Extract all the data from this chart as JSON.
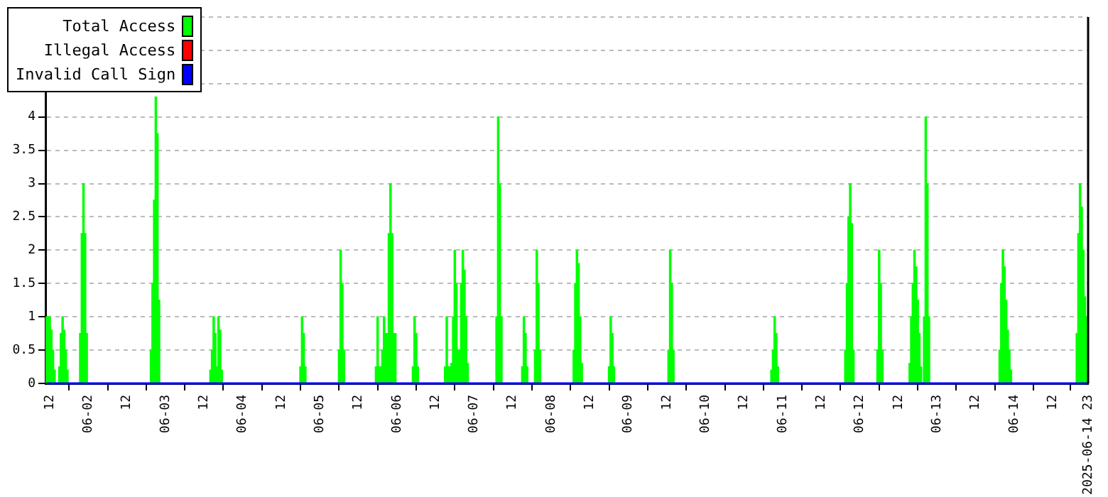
{
  "chart_data": {
    "type": "bar",
    "legend": "top left",
    "grid": "y",
    "marker": "none",
    "xlim": [
      "2025-06-01T10:40",
      "2025-06-14T23:00"
    ],
    "ylim": [
      0,
      5.5
    ],
    "yticks": [
      0,
      0.5,
      1,
      1.5,
      2,
      2.5,
      3,
      3.5,
      4,
      {
        "value": 4.5,
        "label": null
      },
      {
        "value": 5,
        "label": null
      },
      {
        "value": 5.5,
        "label": null
      }
    ],
    "xticks": [
      {
        "value": "2025-06-01T12:00",
        "label": "12"
      },
      {
        "value": "2025-06-02T00:00",
        "label": "06-02"
      },
      {
        "value": "2025-06-02T12:00",
        "label": "12"
      },
      {
        "value": "2025-06-03T00:00",
        "label": "06-03"
      },
      {
        "value": "2025-06-03T12:00",
        "label": "12"
      },
      {
        "value": "2025-06-04T00:00",
        "label": "06-04"
      },
      {
        "value": "2025-06-04T12:00",
        "label": "12"
      },
      {
        "value": "2025-06-05T00:00",
        "label": "06-05"
      },
      {
        "value": "2025-06-05T12:00",
        "label": "12"
      },
      {
        "value": "2025-06-06T00:00",
        "label": "06-06"
      },
      {
        "value": "2025-06-06T12:00",
        "label": "12"
      },
      {
        "value": "2025-06-07T00:00",
        "label": "06-07"
      },
      {
        "value": "2025-06-07T12:00",
        "label": "12"
      },
      {
        "value": "2025-06-08T00:00",
        "label": "06-08"
      },
      {
        "value": "2025-06-08T12:00",
        "label": "12"
      },
      {
        "value": "2025-06-09T00:00",
        "label": "06-09"
      },
      {
        "value": "2025-06-09T12:00",
        "label": "12"
      },
      {
        "value": "2025-06-10T00:00",
        "label": "06-10"
      },
      {
        "value": "2025-06-10T12:00",
        "label": "12"
      },
      {
        "value": "2025-06-11T00:00",
        "label": "06-11"
      },
      {
        "value": "2025-06-11T12:00",
        "label": "12"
      },
      {
        "value": "2025-06-12T00:00",
        "label": "06-12"
      },
      {
        "value": "2025-06-12T12:00",
        "label": "12"
      },
      {
        "value": "2025-06-13T00:00",
        "label": "06-13"
      },
      {
        "value": "2025-06-13T12:00",
        "label": "12"
      },
      {
        "value": "2025-06-14T00:00",
        "label": "06-14"
      },
      {
        "value": "2025-06-14T12:00",
        "label": "12"
      },
      {
        "value": "2025-06-14T23:00",
        "label": "2025-06-14 23"
      }
    ],
    "series": [
      {
        "name": "Total Access",
        "color": "#00ff00",
        "x": [
          "2025-06-01T11:00",
          "2025-06-01T11:30",
          "2025-06-01T12:00",
          "2025-06-01T12:30",
          "2025-06-01T13:00",
          "2025-06-01T13:30",
          "2025-06-01T15:00",
          "2025-06-01T15:30",
          "2025-06-01T16:00",
          "2025-06-01T16:30",
          "2025-06-01T17:00",
          "2025-06-01T17:30",
          "2025-06-01T21:30",
          "2025-06-01T22:00",
          "2025-06-01T22:30",
          "2025-06-01T23:00",
          "2025-06-01T23:30",
          "2025-06-02T19:30",
          "2025-06-02T20:00",
          "2025-06-02T20:30",
          "2025-06-02T21:00",
          "2025-06-02T21:30",
          "2025-06-02T22:00",
          "2025-06-03T14:00",
          "2025-06-03T14:30",
          "2025-06-03T15:00",
          "2025-06-03T15:30",
          "2025-06-03T16:00",
          "2025-06-03T16:30",
          "2025-06-03T17:00",
          "2025-06-03T17:30",
          "2025-06-04T18:00",
          "2025-06-04T18:30",
          "2025-06-04T19:00",
          "2025-06-04T19:30",
          "2025-06-05T06:00",
          "2025-06-05T06:30",
          "2025-06-05T07:00",
          "2025-06-05T07:30",
          "2025-06-05T17:30",
          "2025-06-05T18:00",
          "2025-06-05T18:30",
          "2025-06-05T19:00",
          "2025-06-05T19:30",
          "2025-06-05T20:00",
          "2025-06-05T20:30",
          "2025-06-05T21:00",
          "2025-06-05T21:30",
          "2025-06-05T22:00",
          "2025-06-05T22:30",
          "2025-06-05T23:00",
          "2025-06-05T23:30",
          "2025-06-06T05:00",
          "2025-06-06T05:30",
          "2025-06-06T06:00",
          "2025-06-06T06:30",
          "2025-06-06T15:00",
          "2025-06-06T15:30",
          "2025-06-06T16:00",
          "2025-06-06T16:30",
          "2025-06-06T17:00",
          "2025-06-06T17:30",
          "2025-06-06T18:00",
          "2025-06-06T18:30",
          "2025-06-06T19:00",
          "2025-06-06T19:30",
          "2025-06-06T20:00",
          "2025-06-06T20:30",
          "2025-06-06T21:00",
          "2025-06-06T21:30",
          "2025-06-06T22:00",
          "2025-06-07T07:00",
          "2025-06-07T07:30",
          "2025-06-07T08:00",
          "2025-06-07T08:30",
          "2025-06-07T15:00",
          "2025-06-07T15:30",
          "2025-06-07T16:00",
          "2025-06-07T16:30",
          "2025-06-07T19:00",
          "2025-06-07T19:30",
          "2025-06-07T20:00",
          "2025-06-07T20:30",
          "2025-06-08T07:00",
          "2025-06-08T07:30",
          "2025-06-08T08:00",
          "2025-06-08T08:30",
          "2025-06-08T09:00",
          "2025-06-08T09:30",
          "2025-06-08T18:00",
          "2025-06-08T18:30",
          "2025-06-08T19:00",
          "2025-06-08T19:30",
          "2025-06-09T12:30",
          "2025-06-09T13:00",
          "2025-06-09T13:30",
          "2025-06-09T14:00",
          "2025-06-10T20:30",
          "2025-06-10T21:00",
          "2025-06-10T21:30",
          "2025-06-10T22:00",
          "2025-06-10T22:30",
          "2025-06-11T19:30",
          "2025-06-11T20:00",
          "2025-06-11T20:30",
          "2025-06-11T21:00",
          "2025-06-11T21:30",
          "2025-06-11T22:00",
          "2025-06-12T05:30",
          "2025-06-12T06:00",
          "2025-06-12T06:30",
          "2025-06-12T07:00",
          "2025-06-12T15:30",
          "2025-06-12T16:00",
          "2025-06-12T16:30",
          "2025-06-12T17:00",
          "2025-06-12T17:30",
          "2025-06-12T18:00",
          "2025-06-12T18:30",
          "2025-06-12T19:00",
          "2025-06-12T20:00",
          "2025-06-12T20:30",
          "2025-06-12T21:00",
          "2025-06-12T21:30",
          "2025-06-13T19:30",
          "2025-06-13T20:00",
          "2025-06-13T20:30",
          "2025-06-13T21:00",
          "2025-06-13T21:30",
          "2025-06-13T22:00",
          "2025-06-13T22:30",
          "2025-06-13T23:00",
          "2025-06-14T19:30",
          "2025-06-14T20:00",
          "2025-06-14T20:30",
          "2025-06-14T21:00",
          "2025-06-14T21:30",
          "2025-06-14T22:00",
          "2025-06-14T22:30"
        ],
        "values": [
          1,
          1,
          1,
          0.8,
          0.5,
          0.2,
          0.25,
          0.75,
          1,
          0.8,
          0.5,
          0.2,
          0.75,
          2.25,
          3,
          2.25,
          0.75,
          0.5,
          1.5,
          2.75,
          4.3,
          3.75,
          1.25,
          0.2,
          0.5,
          1,
          0.75,
          0.25,
          1,
          0.8,
          0.2,
          0.25,
          1,
          0.75,
          0.25,
          0.5,
          2,
          1.5,
          0.5,
          0.25,
          1,
          0.25,
          0.25,
          0.5,
          1,
          0.75,
          0.75,
          2.25,
          3,
          2.25,
          0.75,
          0.75,
          0.25,
          1,
          0.75,
          0.25,
          0.25,
          1,
          0.25,
          0.25,
          0.3,
          1,
          2,
          1.5,
          0.5,
          0.5,
          1.5,
          2,
          1.7,
          1,
          0.3,
          1,
          4,
          3,
          1,
          0.25,
          1,
          0.75,
          0.25,
          0.5,
          2,
          1.5,
          0.5,
          0.5,
          1.5,
          2,
          1.8,
          1,
          0.3,
          0.25,
          1,
          0.75,
          0.25,
          0.5,
          2,
          1.5,
          0.5,
          0.2,
          0.5,
          1,
          0.75,
          0.25,
          0.5,
          1.5,
          2.5,
          3,
          2.4,
          0.5,
          0.5,
          2,
          1.5,
          0.5,
          0.3,
          1,
          1.5,
          2,
          1.75,
          1.25,
          0.75,
          0.25,
          1,
          4,
          3,
          1,
          0.5,
          1.5,
          2,
          1.75,
          1.25,
          0.8,
          0.5,
          0.2,
          0.75,
          2.25,
          3,
          2.65,
          2,
          1.3,
          1
        ]
      },
      {
        "name": "Illegal Access",
        "color": "#ff0000",
        "type": "line"
      },
      {
        "name": "Invalid Call Sign",
        "color": "#0000ff",
        "type": "line",
        "x": [
          "2025-06-01T11:00",
          "2025-06-14T22:40"
        ],
        "values": [
          0,
          0
        ]
      }
    ]
  }
}
